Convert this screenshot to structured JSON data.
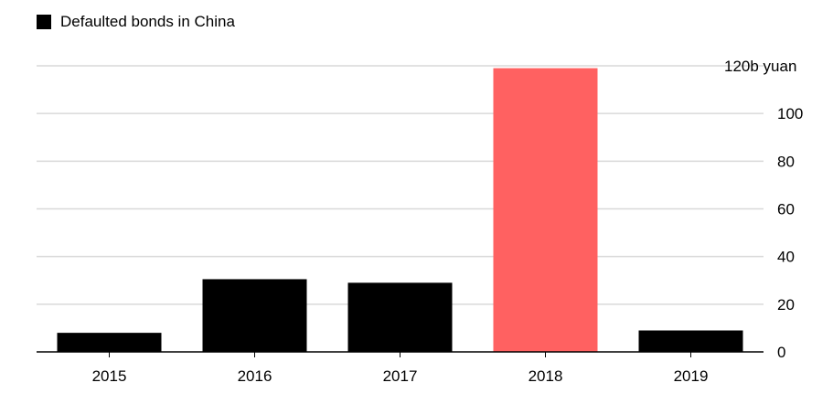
{
  "chart_data": {
    "type": "bar",
    "categories": [
      "2015",
      "2016",
      "2017",
      "2018",
      "2019"
    ],
    "series": [
      {
        "name": "Defaulted bonds in China",
        "values": [
          8,
          30.5,
          29,
          119,
          9
        ]
      }
    ],
    "highlight_index": 3,
    "colors": {
      "bar": "#000000",
      "highlight": "#ff6161",
      "grid": "#d9d9d9",
      "axis": "#000000"
    },
    "y_ticks": [
      "0",
      "20",
      "40",
      "60",
      "80",
      "100",
      "120b yuan"
    ],
    "ylim": [
      0,
      120
    ],
    "y_axis_side": "right",
    "grid": true,
    "legend": {
      "label": "Defaulted bonds in China",
      "position": "top-left"
    }
  }
}
